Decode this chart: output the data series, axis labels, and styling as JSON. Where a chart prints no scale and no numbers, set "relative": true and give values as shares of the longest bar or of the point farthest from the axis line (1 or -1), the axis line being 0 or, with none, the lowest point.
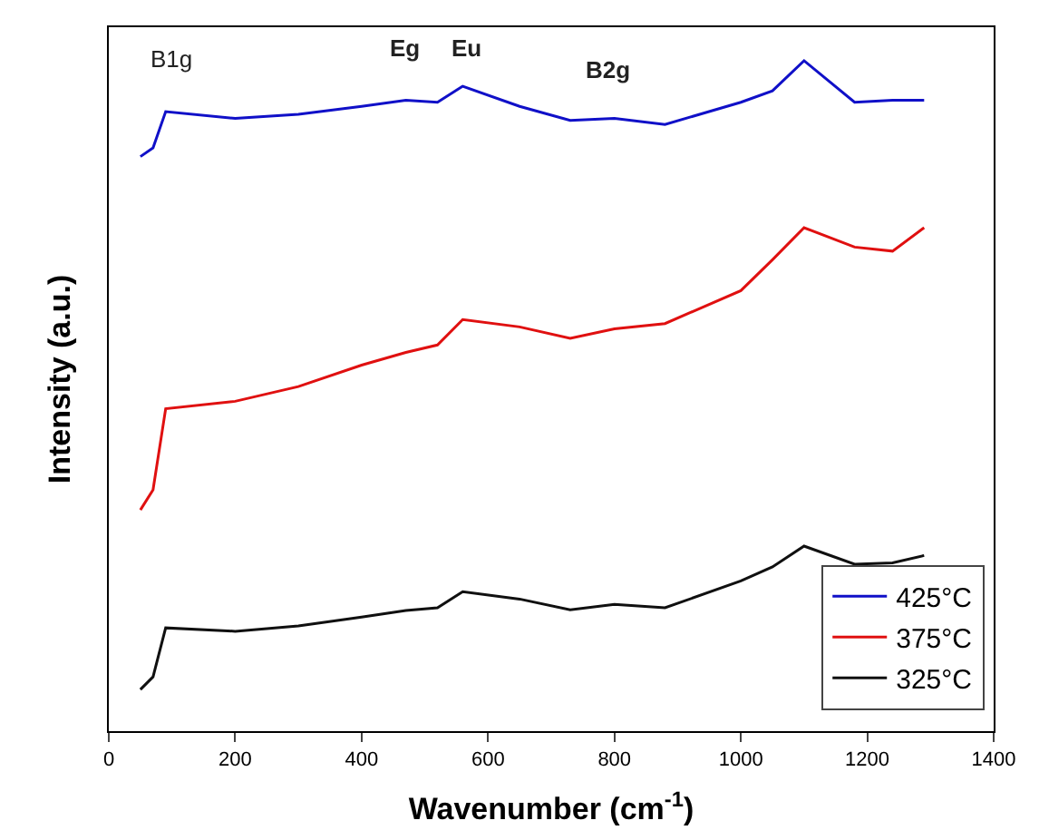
{
  "chart_data": {
    "type": "line",
    "relative": true,
    "xlabel": "Wavenumber (cm$^{-1}$)",
    "ylabel": "Intensity (a.u.)",
    "xlim": [
      0,
      1400
    ],
    "xticks": [
      0,
      200,
      400,
      600,
      800,
      1000,
      1200,
      1400
    ],
    "legend": "bottom right",
    "marker": "none",
    "line_style": "solid",
    "x": [
      50,
      70,
      90,
      200,
      300,
      400,
      470,
      520,
      560,
      650,
      730,
      800,
      880,
      1000,
      1050,
      1100,
      1180,
      1240,
      1290
    ],
    "series": [
      {
        "name": "425°C",
        "color": "#1010c8",
        "values": [
          0.857,
          0.87,
          0.924,
          0.914,
          0.92,
          0.932,
          0.941,
          0.938,
          0.962,
          0.932,
          0.911,
          0.914,
          0.905,
          0.938,
          0.955,
          1.0,
          0.938,
          0.941,
          0.941
        ]
      },
      {
        "name": "375°C",
        "color": "#e01010",
        "values": [
          0.33,
          0.36,
          0.481,
          0.492,
          0.514,
          0.546,
          0.565,
          0.576,
          0.614,
          0.603,
          0.586,
          0.6,
          0.608,
          0.657,
          0.703,
          0.751,
          0.722,
          0.716,
          0.751
        ]
      },
      {
        "name": "325°C",
        "color": "#101010",
        "values": [
          0.062,
          0.081,
          0.154,
          0.149,
          0.157,
          0.17,
          0.18,
          0.184,
          0.208,
          0.197,
          0.181,
          0.189,
          0.184,
          0.224,
          0.245,
          0.276,
          0.249,
          0.251,
          0.262
        ]
      }
    ],
    "annotations": [
      "B1g",
      "Eg",
      "Eu",
      "B2g"
    ]
  }
}
